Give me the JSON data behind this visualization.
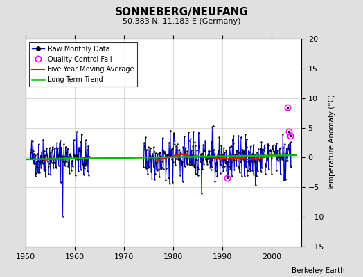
{
  "title": "SONNEBERG/NEUFANG",
  "subtitle": "50.383 N, 11.183 E (Germany)",
  "ylabel": "Temperature Anomaly (°C)",
  "credit": "Berkeley Earth",
  "xlim": [
    1950,
    2006
  ],
  "ylim": [
    -15,
    20
  ],
  "yticks": [
    -15,
    -10,
    -5,
    0,
    5,
    10,
    15,
    20
  ],
  "xticks": [
    1950,
    1960,
    1970,
    1980,
    1990,
    2000
  ],
  "bg_color": "#e0e0e0",
  "plot_bg_color": "#ffffff",
  "raw_color": "#0000cc",
  "ma_color": "#ff0000",
  "trend_color": "#00bb00",
  "qc_color": "#ff00ff",
  "segment1_start": 1951.0,
  "segment1_end": 1963.0,
  "segment2_start": 1974.0,
  "segment2_end": 2004.0,
  "spike1_year": 1957.6,
  "spike1_val": -10.0,
  "spike2_year": 1985.75,
  "spike2_val": -6.0,
  "qc_points": [
    [
      1991.0,
      -3.5
    ],
    [
      2003.2,
      8.5
    ],
    [
      2003.55,
      4.4
    ],
    [
      2003.75,
      3.7
    ]
  ],
  "trend_x": [
    1950,
    2005
  ],
  "trend_y": [
    -0.3,
    0.4
  ],
  "seed": 42
}
